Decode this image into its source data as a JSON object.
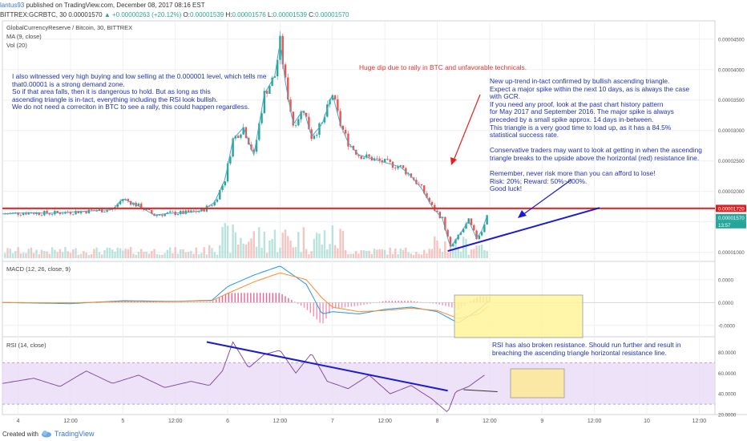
{
  "header": {
    "author": "lantus93",
    "published": "published on TradingView.com, December 08, 2017 08:16 EST",
    "symbol": "BITTREX:GCRBTC, 30",
    "price": "0.00001570",
    "change": "+0.00000263 (+20.12%)",
    "o_label": "O:",
    "o": "0.00001539",
    "h_label": "H:",
    "h": "0.00001576",
    "l_label": "L:",
    "l": "0.00001539",
    "c_label": "C:",
    "c": "0.00001570"
  },
  "panes": {
    "main_title": "GlobalCurrencyReserve / Bitcoin, 30, BITTREX",
    "ma_label": "MA (9, close)",
    "vol_label": "Vol (20)",
    "macd_label": "MACD (12, 26, close, 9)",
    "rsi_label": "RSI (14, close)"
  },
  "notes": {
    "left": "I also witnessed very high buying and low selling at the 0.000001 level, which tells me\nthat0.00001 is a strong demand zone.\nSo if that area falls, then it is dangerous to hold. But as long as this\nascending triangle is in-tact, everything including the RSI look bullish.\nWe do not need a correciton in BTC to see a rally, this could happen regardless.",
    "dip": "Huge dip due to rally in BTC and unfavorable technicals.",
    "right": "New up-trend in-tact confirmed by bullish ascending triangle.\nExpect a major spike within the next 10 days, as is always the case\nwith GCR.\nIf you need any proof, look at the past chart history pattern\nfor May 2017 and September 2016. The major spike is always\npreceded by a small spike approx. 14 days in-between.\nThis triangle is a very good time to load up, as it has a 84.5%\nstatistical success rate.\n\nConservative traders may want to look at getting in when the ascending\ntriangle breaks to the upside above the horizontal (red) resistance line.\n\nRemember, never risk more than you can afford to lose!\nRisk: 20%; Reward: 50%~600%.\nGood luck!",
    "rsi": "RSI has also broken resistance. Should run further and result in\nbreaching the ascending triangle horizontal resistance line."
  },
  "footer": {
    "created_with": "Created with",
    "brand": "TradingView"
  },
  "chart_data": [
    {
      "type": "line",
      "pane": "price",
      "y_ticks": [
        "0.00004500",
        "0.00004000",
        "0.00003500",
        "0.00003000",
        "0.00002500",
        "0.00002000",
        "0.00001500",
        "0.00001000"
      ],
      "y_tick_values": [
        4.5e-05,
        4e-05,
        3.5e-05,
        3e-05,
        2.5e-05,
        2e-05,
        1.5e-05,
        1e-05
      ],
      "ylim": [
        8.5e-06,
        4.8e-05
      ],
      "x_ticks": [
        "4",
        "12:00",
        "5",
        "12:00",
        "6",
        "12:00",
        "7",
        "12:00",
        "8",
        "12:00",
        "9",
        "12:00",
        "10",
        "12:00"
      ],
      "x_tick_values": [
        0,
        1,
        2,
        3,
        4,
        5,
        6,
        7,
        8,
        9,
        10,
        11,
        12,
        13
      ],
      "xlim": [
        -0.3,
        13.3
      ],
      "series": [
        {
          "x": [
            -0.3,
            0.2,
            0.6,
            1.0,
            1.4,
            1.8,
            2.0,
            2.3,
            2.6,
            2.9,
            3.2,
            3.5,
            3.75,
            3.95,
            4.1,
            4.3,
            4.5,
            4.7,
            4.9,
            5.0,
            5.1,
            5.25,
            5.45,
            5.6,
            5.8,
            6.0,
            6.15,
            6.3,
            6.5,
            6.7,
            6.9,
            7.1,
            7.3,
            7.5,
            7.7,
            7.9,
            8.1,
            8.25,
            8.45,
            8.6,
            8.75,
            8.85,
            8.95
          ],
          "values": [
            1.63e-05,
            1.65e-05,
            1.64e-05,
            1.66e-05,
            1.68e-05,
            1.7e-05,
            1.88e-05,
            1.76e-05,
            1.61e-05,
            1.64e-05,
            1.65e-05,
            1.68e-05,
            1.82e-05,
            2.2e-05,
            2.85e-05,
            3.05e-05,
            2.6e-05,
            3.6e-05,
            3.9e-05,
            4.45e-05,
            3.8e-05,
            3.1e-05,
            3.35e-05,
            2.9e-05,
            3.1e-05,
            3.6e-05,
            3.1e-05,
            2.8e-05,
            2.6e-05,
            2.55e-05,
            2.5e-05,
            2.45e-05,
            2.4e-05,
            2.25e-05,
            2.05e-05,
            1.75e-05,
            1.55e-05,
            1.08e-05,
            1.32e-05,
            1.52e-05,
            1.23e-05,
            1.35e-05,
            1.6e-05
          ]
        }
      ],
      "lines": [
        {
          "name": "horizontal-resistance",
          "color": "#ee2222",
          "value": 1.72e-05
        },
        {
          "name": "ascending-support",
          "color": "#1a1ad0",
          "from": [
            8.2,
            1.02e-05
          ],
          "to": [
            11.1,
            1.73e-05
          ]
        }
      ],
      "price_tags": [
        "0.00001720",
        "0.00001570",
        "13:57"
      ],
      "colors": {
        "up": "#26a69a",
        "down": "#ef5350",
        "ma": "#4aa8c8"
      }
    },
    {
      "type": "line",
      "pane": "macd",
      "y_ticks": [
        "0.0000",
        "0.0000",
        "-0.0000"
      ],
      "y_tick_values": [
        1,
        0,
        -1
      ],
      "ylim": [
        -1.5,
        1.8
      ],
      "series": [
        {
          "name": "MACD",
          "color": "#2196f3",
          "x": [
            -0.3,
            1,
            2,
            3,
            3.7,
            4,
            4.5,
            5,
            5.5,
            5.8,
            6,
            6.5,
            7,
            7.5,
            8,
            8.4,
            8.8,
            9
          ],
          "values": [
            0,
            -0.05,
            0.08,
            0.05,
            0.1,
            0.7,
            1.2,
            1.6,
            0.8,
            -0.5,
            -0.4,
            -0.5,
            -0.3,
            -0.2,
            -0.4,
            -0.9,
            -0.3,
            0.1
          ]
        },
        {
          "name": "Signal",
          "color": "#ff8a28",
          "x": [
            -0.3,
            1,
            2,
            3,
            3.7,
            4,
            4.5,
            5,
            5.5,
            5.8,
            6,
            6.5,
            7,
            7.5,
            8,
            8.4,
            8.8,
            9
          ],
          "values": [
            0,
            -0.02,
            0.05,
            0.04,
            0.08,
            0.4,
            0.9,
            1.3,
            1.0,
            0.2,
            -0.2,
            -0.4,
            -0.35,
            -0.25,
            -0.35,
            -0.7,
            -0.5,
            -0.1
          ]
        }
      ]
    },
    {
      "type": "line",
      "pane": "rsi",
      "y_ticks": [
        "80.0000",
        "60.0000",
        "40.0000",
        "20.0000"
      ],
      "y_tick_values": [
        80,
        60,
        40,
        20
      ],
      "ylim": [
        20,
        95
      ],
      "band": [
        30,
        70
      ],
      "series": [
        {
          "name": "RSI",
          "color": "#7d3f98",
          "x": [
            -0.3,
            0.3,
            0.8,
            1.3,
            1.8,
            2.3,
            2.8,
            3.3,
            3.65,
            3.9,
            4.1,
            4.4,
            4.7,
            5.0,
            5.3,
            5.6,
            5.9,
            6.3,
            6.7,
            7.1,
            7.5,
            7.9,
            8.2,
            8.35,
            8.6,
            8.9
          ],
          "values": [
            50,
            55,
            47,
            62,
            50,
            58,
            46,
            52,
            48,
            62,
            90,
            65,
            78,
            82,
            60,
            79,
            52,
            45,
            58,
            40,
            48,
            35,
            22,
            42,
            47,
            58
          ]
        }
      ],
      "lines": [
        {
          "name": "rsi-resistance",
          "color": "#1a1ad0",
          "from": [
            3.6,
            90
          ],
          "to": [
            8.2,
            43
          ]
        },
        {
          "name": "rsi-up-trend",
          "color": "#333333",
          "from": [
            8.5,
            44
          ],
          "to": [
            9.15,
            42
          ]
        }
      ]
    }
  ]
}
